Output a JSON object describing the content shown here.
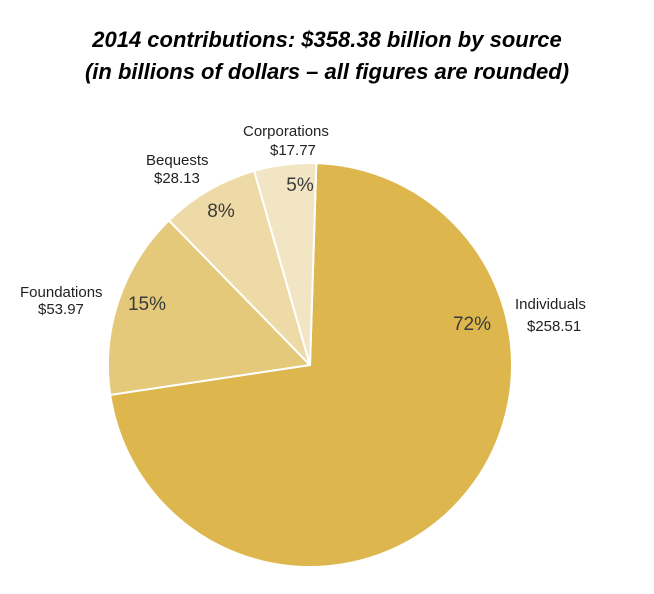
{
  "title": {
    "line1": "2014 contributions: $358.38 billion by source",
    "line2": "(in billions of dollars – all figures are rounded)"
  },
  "chart_data": {
    "type": "pie",
    "title": "2014 contributions: $358.38 billion by source",
    "subtitle": "(in billions of dollars – all figures are rounded)",
    "unit": "billions of dollars",
    "total": 358.38,
    "slices": [
      {
        "name": "Individuals",
        "value": 258.51,
        "value_label": "$258.51",
        "percent_label": "72%",
        "color": "#DDB74E"
      },
      {
        "name": "Foundations",
        "value": 53.97,
        "value_label": "$53.97",
        "percent_label": "15%",
        "color": "#E4C97B"
      },
      {
        "name": "Bequests",
        "value": 28.13,
        "value_label": "$28.13",
        "percent_label": "8%",
        "color": "#EDDAA6"
      },
      {
        "name": "Corporations",
        "value": 17.77,
        "value_label": "$17.77",
        "percent_label": "5%",
        "color": "#F2E5C3"
      }
    ],
    "slice_border_color": "#FFFFFF"
  }
}
